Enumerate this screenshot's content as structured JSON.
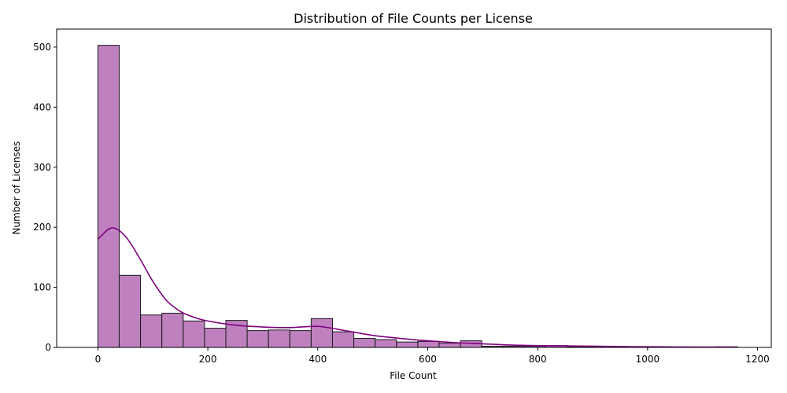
{
  "chart_data": {
    "type": "bar",
    "title": "Distribution of File Counts per License",
    "xlabel": "File Count",
    "ylabel": "Number of Licenses",
    "xlim": [
      -75,
      1225
    ],
    "ylim": [
      0,
      530
    ],
    "xticks": [
      0,
      200,
      400,
      600,
      800,
      1000,
      1200
    ],
    "yticks": [
      0,
      100,
      200,
      300,
      400,
      500
    ],
    "grid": false,
    "bin_edges": [
      0,
      38.8,
      77.6,
      116.4,
      155.2,
      194,
      232.8,
      271.6,
      310.4,
      349.2,
      388,
      426.8,
      465.6,
      504.4,
      543.2,
      582,
      620.8,
      659.6,
      698.4,
      737.2,
      776,
      814.8,
      853.6,
      892.4,
      931.2,
      970,
      1008.8,
      1047.6,
      1086.4,
      1125.2,
      1164
    ],
    "values": [
      503,
      120,
      54,
      57,
      44,
      32,
      45,
      28,
      29,
      28,
      48,
      26,
      15,
      13,
      9,
      10,
      7,
      11,
      2,
      2,
      2,
      3,
      1,
      1,
      0,
      0,
      0,
      0,
      0,
      1
    ],
    "kde": {
      "x": [
        0,
        25,
        50,
        75,
        100,
        125,
        150,
        175,
        200,
        250,
        300,
        350,
        400,
        450,
        500,
        550,
        600,
        650,
        700,
        750,
        800,
        850,
        900,
        950,
        1000,
        1050,
        1100,
        1164
      ],
      "y": [
        180,
        199,
        185,
        150,
        110,
        78,
        60,
        50,
        44,
        37,
        34,
        33,
        35,
        28,
        20,
        15,
        11,
        8,
        6,
        4,
        3,
        2.5,
        2,
        1.5,
        1,
        0.8,
        0.6,
        0.5
      ]
    },
    "colors": {
      "bar_fill": "#bf80bf",
      "bar_edge": "#1a1a1a",
      "kde_line": "#800080"
    }
  }
}
